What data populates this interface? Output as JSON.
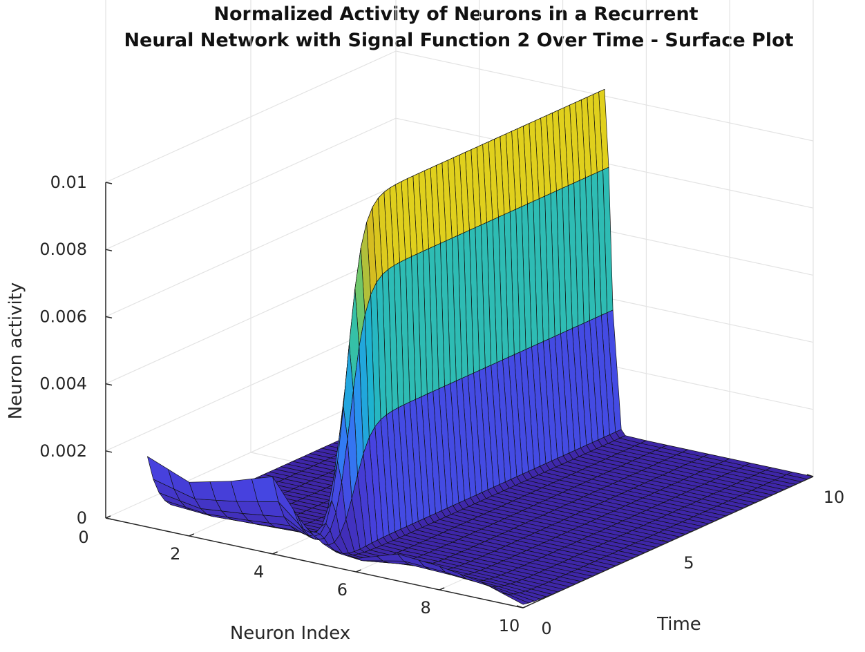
{
  "chart_data": {
    "type": "surface",
    "title": "Normalized Activity of Neurons in a Recurrent Neural Network with Signal Function 2 Over Time - Surface Plot",
    "title_lines": [
      "Normalized Activity of Neurons in a Recurrent",
      "Neural Network with Signal Function 2 Over Time - Surface Plot"
    ],
    "xlabel": "Neuron Index",
    "ylabel": "Time",
    "zlabel": "Neuron activity",
    "xlim": [
      0,
      10
    ],
    "ylim": [
      0,
      10
    ],
    "zlim": [
      0,
      0.01
    ],
    "x_ticks": [
      {
        "value": 0,
        "label": "0"
      },
      {
        "value": 2,
        "label": "2"
      },
      {
        "value": 4,
        "label": "4"
      },
      {
        "value": 6,
        "label": "6"
      },
      {
        "value": 8,
        "label": "8"
      },
      {
        "value": 10,
        "label": "10"
      }
    ],
    "y_ticks": [
      {
        "value": 0,
        "label": "0"
      },
      {
        "value": 5,
        "label": "5"
      },
      {
        "value": 10,
        "label": "10"
      }
    ],
    "z_ticks": [
      {
        "value": 0,
        "label": "0"
      },
      {
        "value": 0.002,
        "label": "0.002"
      },
      {
        "value": 0.004,
        "label": "0.004"
      },
      {
        "value": 0.006,
        "label": "0.006"
      },
      {
        "value": 0.008,
        "label": "0.008"
      },
      {
        "value": 0.01,
        "label": "0.01"
      }
    ],
    "neuron_index": [
      1,
      2,
      3,
      4,
      5,
      6,
      7,
      8,
      9,
      10
    ],
    "initial_activity": [
      0.0021,
      0.0016,
      0.0019,
      0.0023,
      0.0006,
      0.0004,
      0.0008,
      0.0007,
      0.0005,
      0.0001
    ],
    "peak_neuron": 5,
    "steady_state_activity": 0.0102,
    "colormap": [
      "#3e26a8",
      "#4742e0",
      "#2e87f7",
      "#1cb2d3",
      "#48cb86",
      "#d4bb21",
      "#f9fb15"
    ],
    "grid": true
  }
}
